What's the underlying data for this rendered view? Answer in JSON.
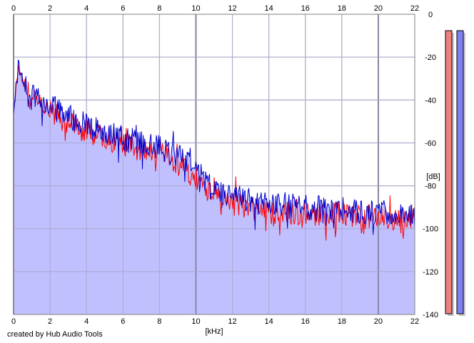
{
  "chart_data": {
    "type": "area",
    "title": "",
    "xlabel": "[kHz]",
    "ylabel": "[dB]",
    "xlim": [
      0,
      22
    ],
    "ylim": [
      -140,
      0
    ],
    "x_ticks": [
      0,
      2,
      4,
      6,
      8,
      10,
      12,
      14,
      16,
      18,
      20,
      22
    ],
    "y_ticks": [
      0,
      -20,
      -40,
      -60,
      -80,
      -100,
      -120,
      -140
    ],
    "grid": true,
    "series": [
      {
        "color": "#ff0000",
        "x": [
          0,
          0.25,
          0.5,
          1,
          2,
          3,
          4,
          5,
          6,
          7,
          8,
          9,
          10,
          10.5,
          11,
          12,
          13,
          14,
          16,
          18,
          20,
          22
        ],
        "y": [
          -47,
          -25,
          -32,
          -40,
          -46,
          -50,
          -55,
          -57,
          -60,
          -63,
          -65,
          -70,
          -76,
          -80,
          -83,
          -88,
          -90,
          -93,
          -93,
          -93,
          -95,
          -97
        ]
      },
      {
        "color": "#0000cc",
        "x": [
          0,
          0.25,
          0.5,
          1,
          2,
          3,
          4,
          5,
          6,
          7,
          8,
          9,
          10,
          10.5,
          11,
          12,
          13,
          14,
          16,
          18,
          20,
          22
        ],
        "y": [
          -45,
          -22,
          -30,
          -38,
          -43,
          -47,
          -52,
          -55,
          -58,
          -60,
          -62,
          -66,
          -73,
          -78,
          -82,
          -85,
          -87,
          -89,
          -90,
          -91,
          -93,
          -95
        ]
      }
    ],
    "fill_color": "#c0c0ff",
    "meters": [
      {
        "color": "#f08080"
      },
      {
        "color": "#8080f0"
      }
    ]
  },
  "footer": {
    "credit": "created by Hub Audio Tools"
  }
}
